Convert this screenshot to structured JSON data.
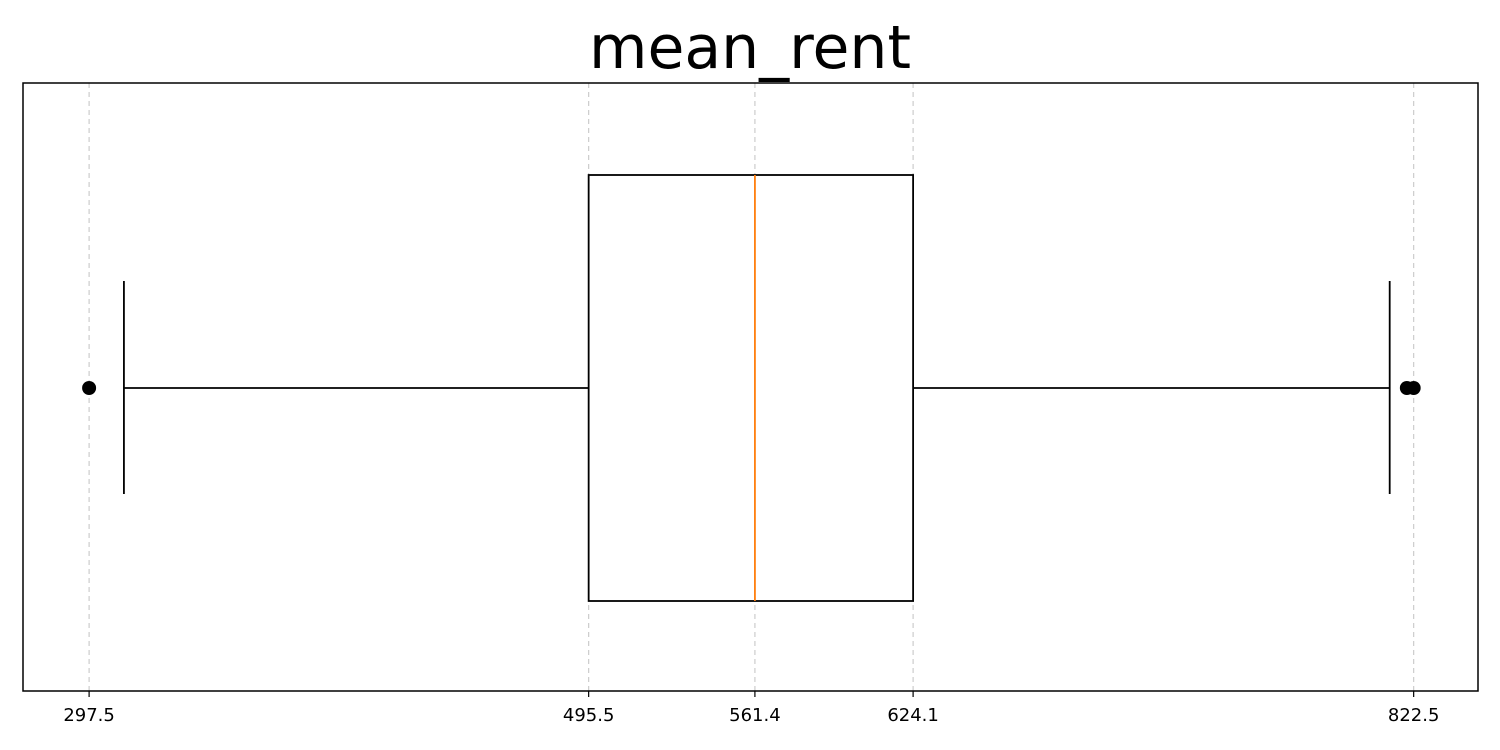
{
  "chart_data": {
    "type": "boxplot",
    "title": "mean_rent",
    "orientation": "horizontal",
    "xlim": [
      271.3,
      848.0
    ],
    "xticks": [
      297.5,
      495.5,
      561.4,
      624.1,
      822.5
    ],
    "xtick_labels": [
      "297.5",
      "495.5",
      "561.4",
      "624.1",
      "822.5"
    ],
    "grid": "x-dashed",
    "box": {
      "whisker_low": 311.3,
      "q1": 495.5,
      "median": 561.4,
      "q3": 624.1,
      "whisker_high": 813.0,
      "outliers": [
        297.5,
        819.8,
        822.5
      ]
    },
    "colors": {
      "box": "#000000",
      "median": "#ff7f0e",
      "grid": "#cccccc",
      "outlier": "#000000"
    }
  }
}
